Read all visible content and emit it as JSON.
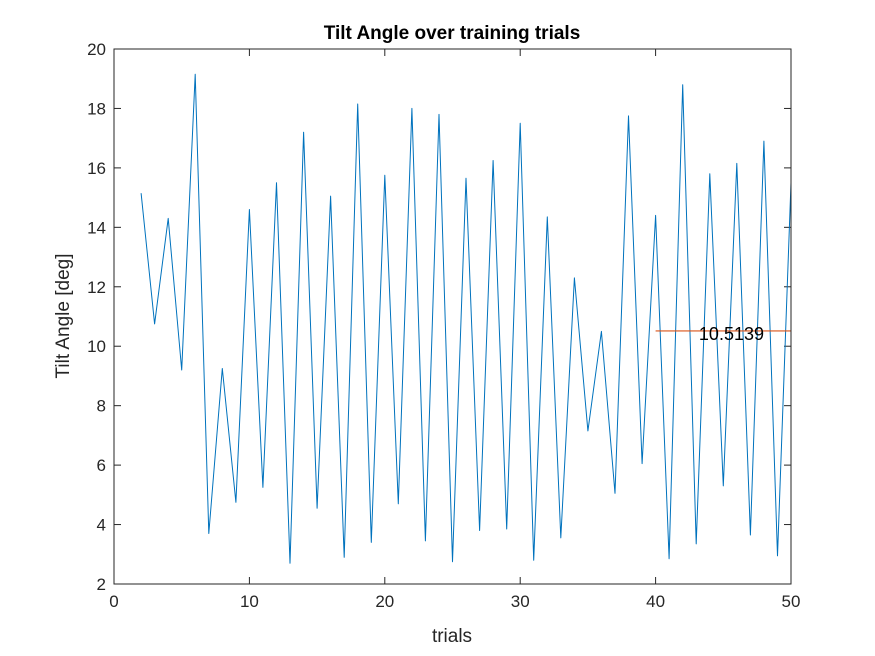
{
  "chart_data": {
    "type": "line",
    "title": "Tilt Angle over training trials",
    "xlabel": "trials",
    "ylabel": "Tilt Angle [deg]",
    "xlim": [
      0,
      50
    ],
    "ylim": [
      2,
      20
    ],
    "xticks": [
      "0",
      "10",
      "20",
      "30",
      "40",
      "50"
    ],
    "yticks": [
      "2",
      "4",
      "6",
      "8",
      "10",
      "12",
      "14",
      "16",
      "18",
      "20"
    ],
    "grid": false,
    "series": [
      {
        "color": "#0072BD",
        "x": [
          2,
          3,
          4,
          5,
          6,
          7,
          8,
          9,
          10,
          11,
          12,
          13,
          14,
          15,
          16,
          17,
          18,
          19,
          20,
          21,
          22,
          23,
          24,
          25,
          26,
          27,
          28,
          29,
          30,
          31,
          32,
          33,
          34,
          35,
          36,
          37,
          38,
          39,
          40,
          41,
          42,
          43,
          44,
          45,
          46,
          47,
          48,
          49,
          50
        ],
        "y": [
          15.15,
          10.75,
          14.3,
          9.2,
          19.15,
          3.7,
          9.25,
          4.75,
          14.6,
          5.25,
          15.5,
          2.7,
          17.2,
          4.55,
          15.05,
          2.9,
          18.15,
          3.4,
          15.75,
          4.7,
          18.0,
          3.45,
          17.8,
          2.75,
          15.65,
          3.8,
          16.25,
          3.85,
          17.5,
          2.8,
          14.35,
          3.55,
          12.3,
          7.15,
          10.5,
          5.05,
          17.75,
          6.05,
          14.4,
          2.85,
          18.8,
          3.35,
          15.8,
          5.3,
          16.15,
          3.65,
          16.9,
          2.95,
          15.5
        ]
      }
    ],
    "reference_line": {
      "color": "#D95319",
      "y": 10.5139,
      "x_range": [
        40,
        50
      ],
      "label": "10.5139",
      "label_x": 43.2
    }
  }
}
